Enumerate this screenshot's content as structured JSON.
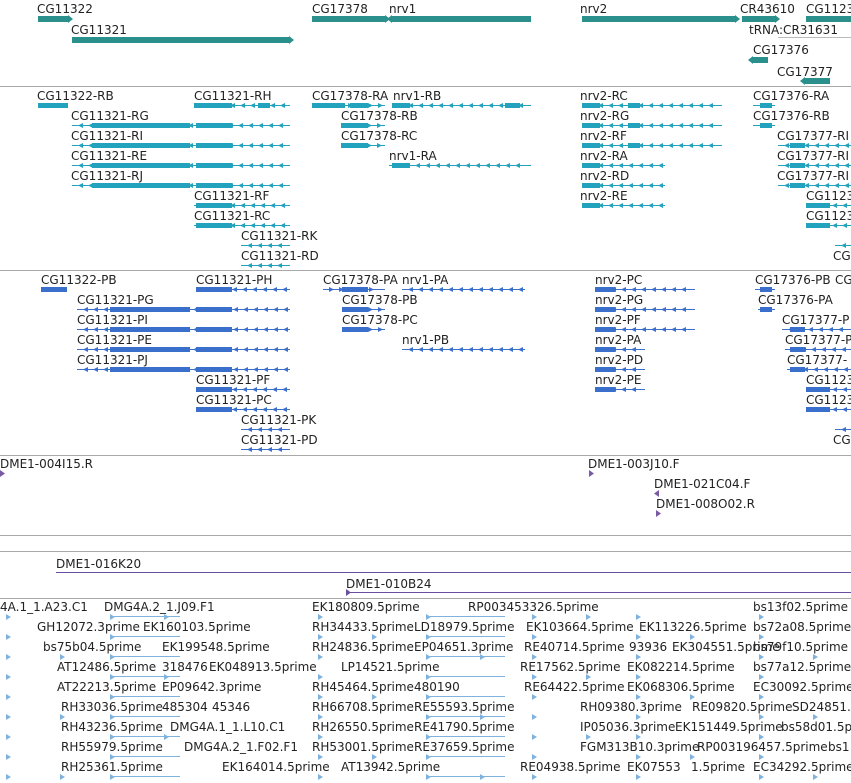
{
  "colors": {
    "gene": "#2b8f8c",
    "transcript": "#23a2bd",
    "protein": "#3a6fcc",
    "bac_end": "#7a5aa6",
    "bac": "#6a4ea0",
    "est": "#7fb2dc",
    "separator": "#a8a8a8"
  },
  "tracks": [
    {
      "id": "genes",
      "items": [
        {
          "label": "CG11322"
        },
        {
          "label": "CG11321"
        },
        {
          "label": "CG17378"
        },
        {
          "label": "nrv1"
        },
        {
          "label": "nrv2"
        },
        {
          "label": "CR43610"
        },
        {
          "label": "CG1123"
        },
        {
          "label": "tRNA:CR31631"
        },
        {
          "label": "CG17376"
        },
        {
          "label": "CG17377"
        }
      ]
    },
    {
      "id": "transcripts",
      "items": [
        {
          "label": "CG11322-RB"
        },
        {
          "label": "CG11321-RH"
        },
        {
          "label": "CG17378-RA"
        },
        {
          "label": "nrv1-RB"
        },
        {
          "label": "nrv2-RC"
        },
        {
          "label": "CG17376-RA"
        },
        {
          "label": "CG11321-RG"
        },
        {
          "label": "CG17378-RB"
        },
        {
          "label": "nrv2-RG"
        },
        {
          "label": "CG17376-RB"
        },
        {
          "label": "CG11321-RI"
        },
        {
          "label": "CG17378-RC"
        },
        {
          "label": "nrv2-RF"
        },
        {
          "label": "CG17377-RI"
        },
        {
          "label": "CG11321-RE"
        },
        {
          "label": "nrv1-RA"
        },
        {
          "label": "nrv2-RA"
        },
        {
          "label": "CG17377-RI"
        },
        {
          "label": "CG11321-RJ"
        },
        {
          "label": "nrv2-RD"
        },
        {
          "label": "CG17377-RI"
        },
        {
          "label": "CG11321-RF"
        },
        {
          "label": "nrv2-RE"
        },
        {
          "label": "CG1123"
        },
        {
          "label": "CG11321-RC"
        },
        {
          "label": "CG1123"
        },
        {
          "label": "CG11321-RK"
        },
        {
          "label": "CG11321-RD"
        },
        {
          "label": "CG"
        }
      ]
    },
    {
      "id": "proteins",
      "items": [
        {
          "label": "CG11322-PB"
        },
        {
          "label": "CG11321-PH"
        },
        {
          "label": "CG17378-PA"
        },
        {
          "label": "nrv1-PA"
        },
        {
          "label": "nrv2-PC"
        },
        {
          "label": "CG17376-PB"
        },
        {
          "label": "CG"
        },
        {
          "label": "CG11321-PG"
        },
        {
          "label": "CG17378-PB"
        },
        {
          "label": "nrv2-PG"
        },
        {
          "label": "CG17376-PA"
        },
        {
          "label": "CG11321-PI"
        },
        {
          "label": "CG17378-PC"
        },
        {
          "label": "nrv2-PF"
        },
        {
          "label": "CG17377-P"
        },
        {
          "label": "CG11321-PE"
        },
        {
          "label": "nrv1-PB"
        },
        {
          "label": "nrv2-PA"
        },
        {
          "label": "CG17377-P"
        },
        {
          "label": "CG11321-PJ"
        },
        {
          "label": "nrv2-PD"
        },
        {
          "label": "CG17377-"
        },
        {
          "label": "CG11321-PF"
        },
        {
          "label": "nrv2-PE"
        },
        {
          "label": "CG1123"
        },
        {
          "label": "CG11321-PC"
        },
        {
          "label": "CG1123"
        },
        {
          "label": "CG11321-PK"
        },
        {
          "label": "CG11321-PD"
        },
        {
          "label": "CG"
        }
      ]
    },
    {
      "id": "bac_ends",
      "items": [
        {
          "label": "DME1-004I15.R"
        },
        {
          "label": "DME1-003J10.F"
        },
        {
          "label": "DME1-021C04.F"
        },
        {
          "label": "DME1-008O02.R"
        }
      ]
    },
    {
      "id": "bacs",
      "items": [
        {
          "label": "DME1-016K20"
        },
        {
          "label": "DME1-010B24"
        }
      ]
    },
    {
      "id": "ests",
      "items": [
        {
          "label": "4A.1_1.A23.C1"
        },
        {
          "label": "DMG4A.2_1.J09.F1"
        },
        {
          "label": "EK180809.5prime"
        },
        {
          "label": "RP003453326.5prime"
        },
        {
          "label": "bs13f02.5prime"
        },
        {
          "label": "GH12072.3prime"
        },
        {
          "label": "EK160103.5prime"
        },
        {
          "label": "RH34433.5prime"
        },
        {
          "label": "LD18979.5prime"
        },
        {
          "label": "EK103664.5prime"
        },
        {
          "label": "EK113226.5prime"
        },
        {
          "label": "bs72a08.5prime"
        },
        {
          "label": "bs75b04.5prime"
        },
        {
          "label": "EK199548.5prime"
        },
        {
          "label": "RH24836.5prime"
        },
        {
          "label": "EP04651.3prime"
        },
        {
          "label": "RE40714.5prime"
        },
        {
          "label": "93936"
        },
        {
          "label": "EK304551.5prime"
        },
        {
          "label": "bs79f10.5prime"
        },
        {
          "label": "AT12486.5prime"
        },
        {
          "label": "318476"
        },
        {
          "label": "EK048913.5prime"
        },
        {
          "label": "LP14521.5prime"
        },
        {
          "label": "RE17562.5prime"
        },
        {
          "label": "EK082214.5prime"
        },
        {
          "label": "bs77a12.5prime"
        },
        {
          "label": "AT22213.5prime"
        },
        {
          "label": "EP09642.3prime"
        },
        {
          "label": "RH45464.5prime"
        },
        {
          "label": "480190"
        },
        {
          "label": "RE64422.5prime"
        },
        {
          "label": "EK068306.5prime"
        },
        {
          "label": "EC30092.5prime"
        },
        {
          "label": "RH33036.5prime"
        },
        {
          "label": "485304"
        },
        {
          "label": "45346"
        },
        {
          "label": "RH66708.5prime"
        },
        {
          "label": "RE55593.5prime"
        },
        {
          "label": "RH09380.3prime"
        },
        {
          "label": "RE09820.5prime"
        },
        {
          "label": "SD24851."
        },
        {
          "label": "RH43236.5prime"
        },
        {
          "label": "DMG4A.1_1.L10.C1"
        },
        {
          "label": "RH26550.5prime"
        },
        {
          "label": "RE41790.5prime"
        },
        {
          "label": "IP05036.3prime"
        },
        {
          "label": "EK151449.5prime"
        },
        {
          "label": "bs58d01.5p"
        },
        {
          "label": "RH55979.5prime"
        },
        {
          "label": "DMG4A.2_1.F02.F1"
        },
        {
          "label": "RH53001.5prime"
        },
        {
          "label": "RE37659.5prime"
        },
        {
          "label": "FGM313B10.3prime"
        },
        {
          "label": "RP003196457.5prime"
        },
        {
          "label": "bs1"
        },
        {
          "label": "RH25361.5prime"
        },
        {
          "label": "EK164014.5prime"
        },
        {
          "label": "AT13942.5prime"
        },
        {
          "label": "RE04938.5prime"
        },
        {
          "label": "EK07553"
        },
        {
          "label": "1.5prime"
        },
        {
          "label": "EC34292.5prime"
        }
      ]
    }
  ]
}
